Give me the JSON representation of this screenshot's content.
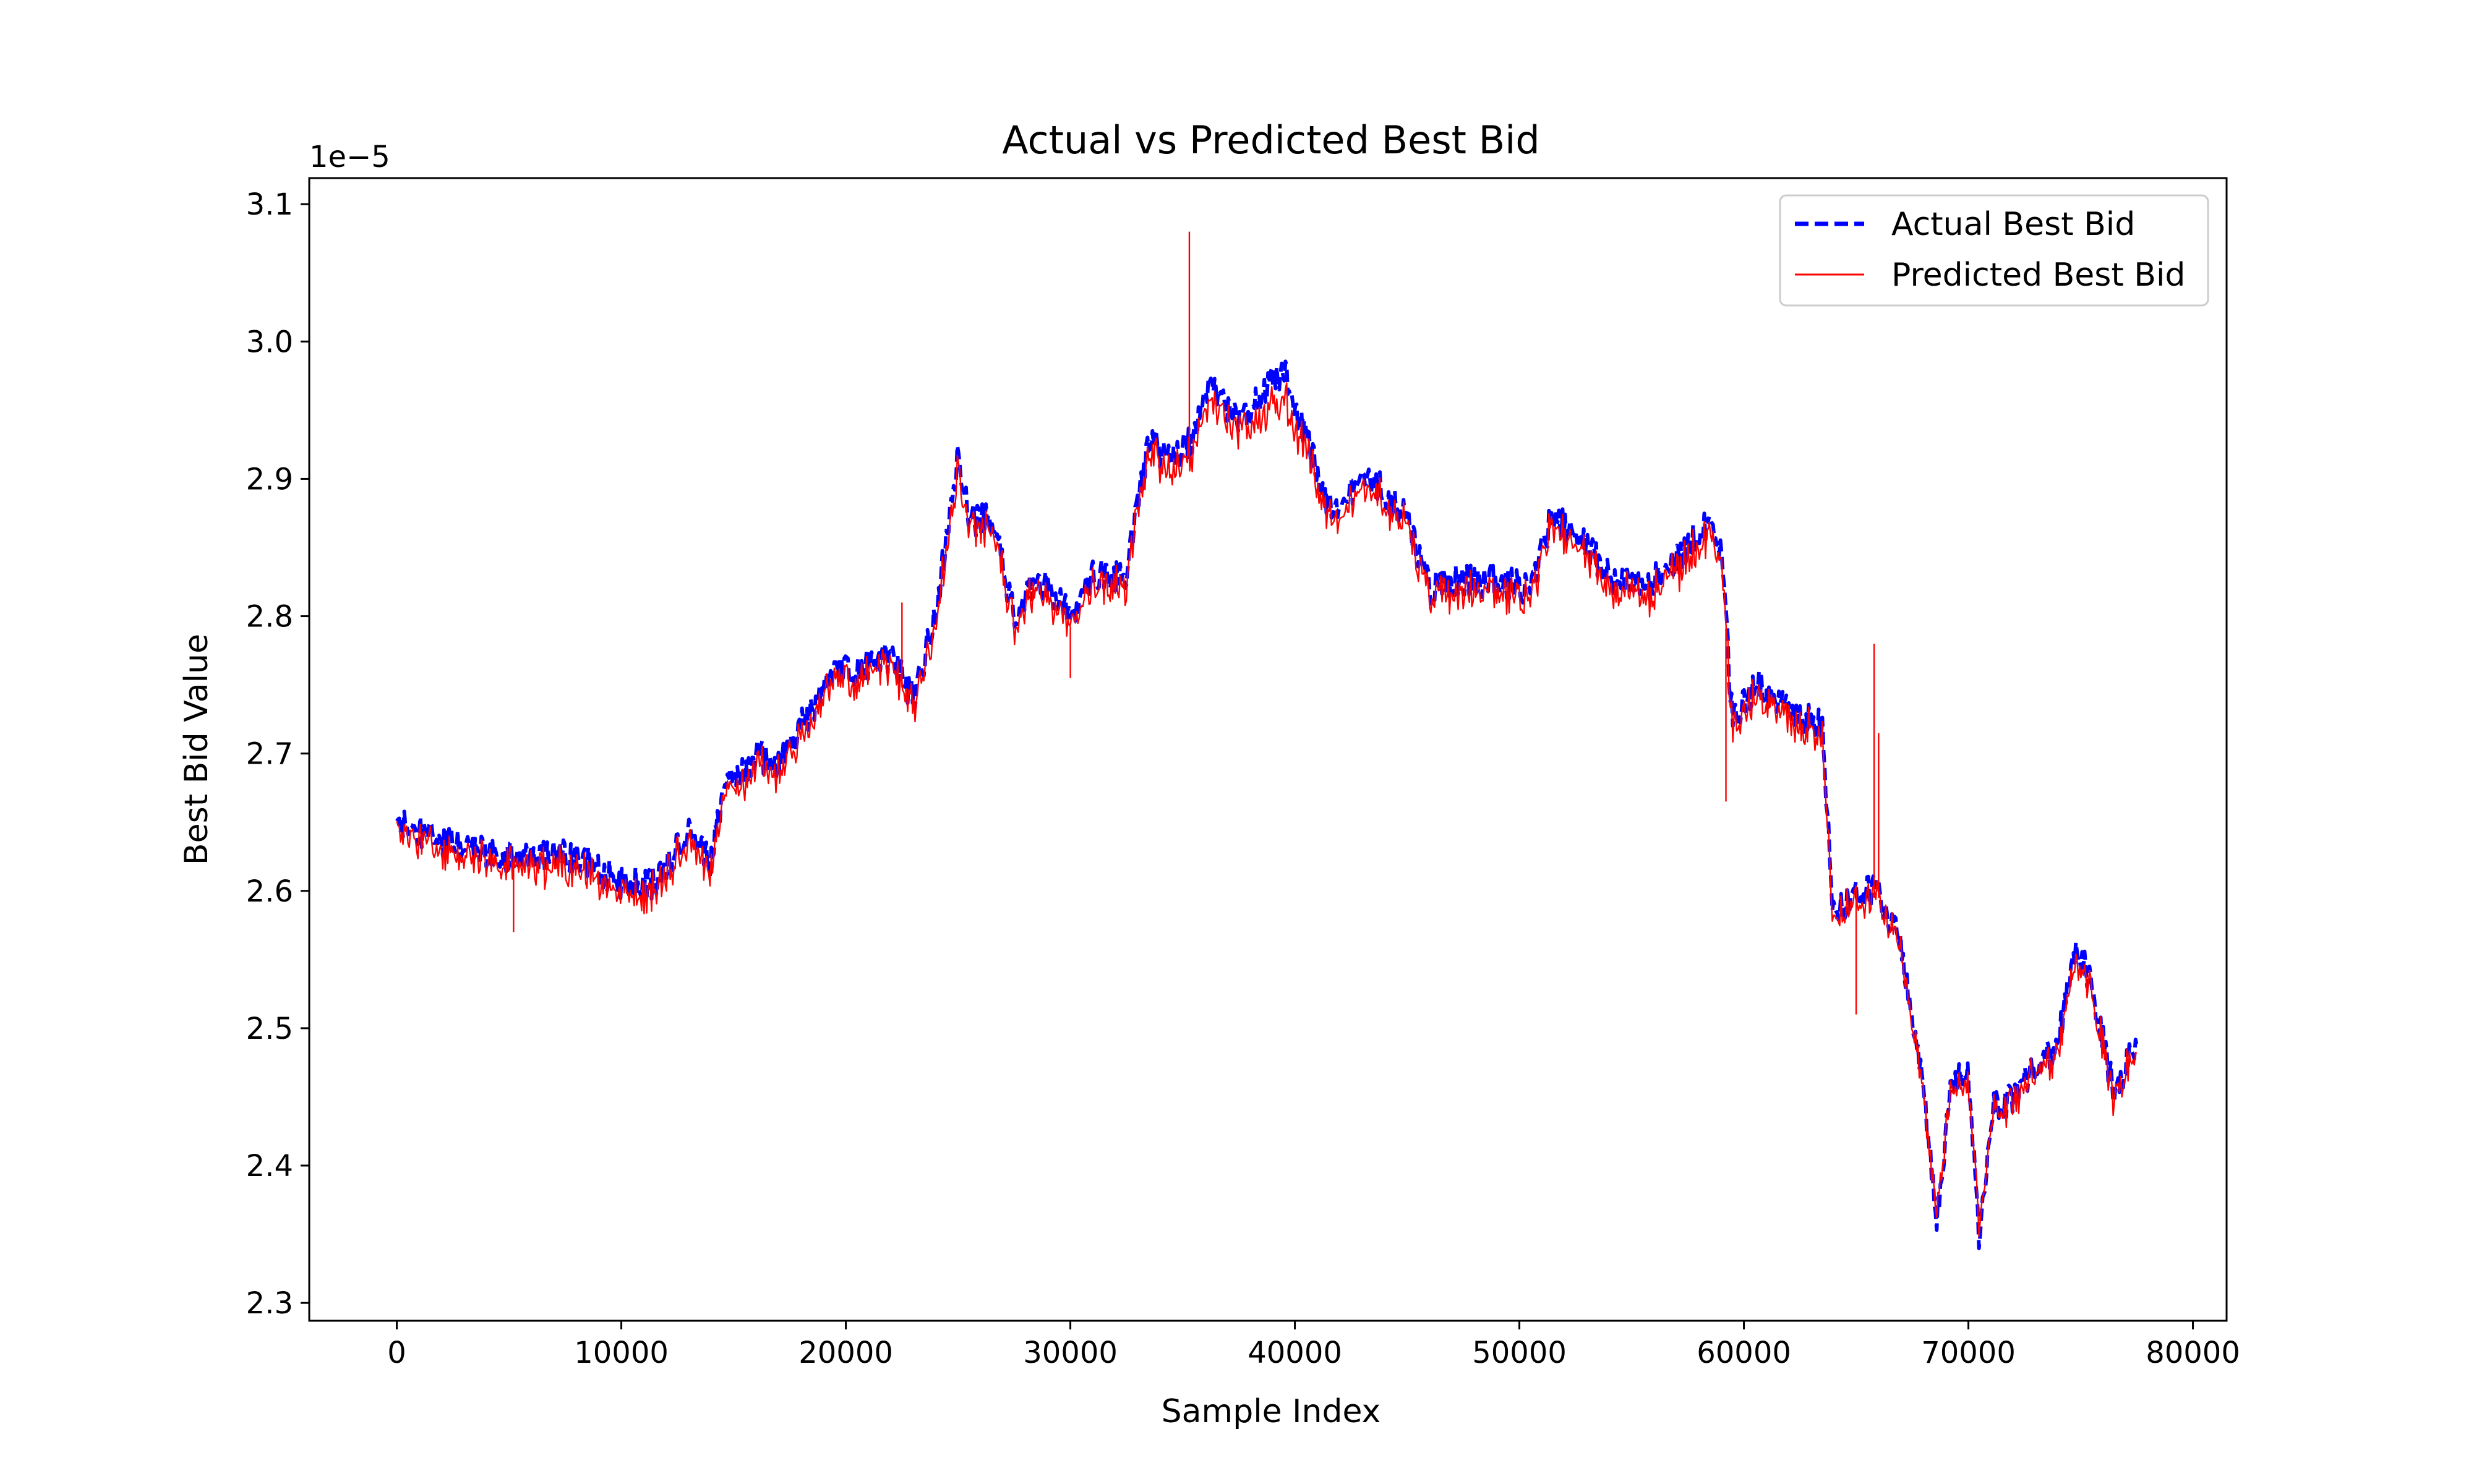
{
  "chart_data": {
    "type": "line",
    "title": "Actual vs Predicted Best Bid",
    "xlabel": "Sample Index",
    "ylabel": "Best Bid Value",
    "y_offset_label": "1e−5",
    "y_scale": 1e-05,
    "xlim": [
      -3900,
      81500
    ],
    "ylim": [
      2.287,
      3.119
    ],
    "x_ticks": [
      0,
      10000,
      20000,
      30000,
      40000,
      50000,
      60000,
      70000,
      80000
    ],
    "x_tick_labels": [
      "0",
      "10000",
      "20000",
      "30000",
      "40000",
      "50000",
      "60000",
      "70000",
      "80000"
    ],
    "y_ticks": [
      2.3,
      2.4,
      2.5,
      2.6,
      2.7,
      2.8,
      2.9,
      3.0,
      3.1
    ],
    "y_tick_labels": [
      "2.3",
      "2.4",
      "2.5",
      "2.6",
      "2.7",
      "2.8",
      "2.9",
      "3.0",
      "3.1"
    ],
    "grid": false,
    "legend": {
      "position": "top-right"
    },
    "noise_amplitude": 0.012,
    "series": [
      {
        "name": "Actual Best Bid",
        "color": "#0000ff",
        "style": "dashed",
        "x": [
          0,
          2000,
          5000,
          8000,
          10000,
          11500,
          13000,
          14000,
          14500,
          16000,
          17000,
          18000,
          19500,
          20500,
          22000,
          23000,
          24000,
          25000,
          25500,
          26500,
          27500,
          28500,
          30000,
          31000,
          32500,
          33500,
          34500,
          35500,
          36200,
          37500,
          39500,
          40500,
          41500,
          42500,
          43500,
          45000,
          46000,
          47000,
          49000,
          50500,
          51500,
          52500,
          54000,
          55500,
          57000,
          58500,
          59000,
          59500,
          60500,
          62000,
          63500,
          64000,
          65000,
          66000,
          67000,
          68000,
          68600,
          69200,
          70000,
          70500,
          71000,
          72000,
          73000,
          74000,
          74800,
          75500,
          76500,
          77500
        ],
        "y": [
          2.65,
          2.635,
          2.625,
          2.625,
          2.605,
          2.605,
          2.645,
          2.62,
          2.67,
          2.7,
          2.69,
          2.72,
          2.76,
          2.76,
          2.77,
          2.74,
          2.8,
          2.92,
          2.87,
          2.87,
          2.8,
          2.83,
          2.8,
          2.83,
          2.83,
          2.93,
          2.91,
          2.93,
          2.97,
          2.94,
          2.98,
          2.93,
          2.88,
          2.89,
          2.9,
          2.87,
          2.82,
          2.825,
          2.825,
          2.82,
          2.875,
          2.86,
          2.83,
          2.82,
          2.84,
          2.87,
          2.85,
          2.72,
          2.75,
          2.73,
          2.72,
          2.58,
          2.6,
          2.6,
          2.56,
          2.46,
          2.36,
          2.46,
          2.47,
          2.34,
          2.44,
          2.45,
          2.47,
          2.49,
          2.56,
          2.53,
          2.45,
          2.49
        ]
      },
      {
        "name": "Predicted Best Bid",
        "color": "#ff0000",
        "style": "solid",
        "x": [
          0,
          2000,
          5000,
          8000,
          10000,
          11500,
          13000,
          14000,
          14500,
          16000,
          17000,
          18000,
          19500,
          20500,
          22000,
          23000,
          24000,
          25000,
          25500,
          26500,
          27500,
          28500,
          30000,
          31000,
          32500,
          33500,
          34500,
          35500,
          36200,
          37500,
          39500,
          40500,
          41500,
          42500,
          43500,
          45000,
          46000,
          47000,
          49000,
          50500,
          51500,
          52500,
          54000,
          55500,
          57000,
          58500,
          59000,
          59500,
          60500,
          62000,
          63500,
          64000,
          65000,
          66000,
          67000,
          68000,
          68600,
          69200,
          70000,
          70500,
          71000,
          72000,
          73000,
          74000,
          74800,
          75500,
          76500,
          77500
        ],
        "y": [
          2.645,
          2.628,
          2.618,
          2.618,
          2.598,
          2.598,
          2.638,
          2.613,
          2.663,
          2.693,
          2.683,
          2.713,
          2.753,
          2.753,
          2.763,
          2.733,
          2.793,
          2.91,
          2.863,
          2.863,
          2.793,
          2.823,
          2.793,
          2.823,
          2.823,
          2.92,
          2.9,
          2.92,
          2.955,
          2.932,
          2.96,
          2.92,
          2.873,
          2.883,
          2.893,
          2.863,
          2.813,
          2.818,
          2.818,
          2.813,
          2.868,
          2.853,
          2.823,
          2.813,
          2.833,
          2.86,
          2.843,
          2.713,
          2.743,
          2.723,
          2.713,
          2.575,
          2.595,
          2.595,
          2.555,
          2.455,
          2.37,
          2.455,
          2.465,
          2.35,
          2.435,
          2.445,
          2.465,
          2.485,
          2.55,
          2.525,
          2.445,
          2.485
        ],
        "spikes": [
          {
            "x": 5200,
            "y": 2.57
          },
          {
            "x": 22500,
            "y": 2.81
          },
          {
            "x": 30000,
            "y": 2.755
          },
          {
            "x": 35300,
            "y": 3.08
          },
          {
            "x": 59200,
            "y": 2.665
          },
          {
            "x": 65000,
            "y": 2.51
          },
          {
            "x": 65800,
            "y": 2.78
          },
          {
            "x": 66000,
            "y": 2.715
          }
        ]
      }
    ]
  }
}
